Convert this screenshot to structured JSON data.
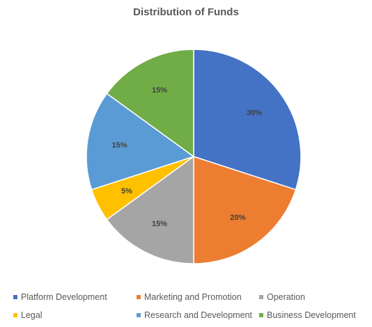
{
  "chart_data": {
    "type": "pie",
    "title": "Distribution of Funds",
    "slices": [
      {
        "label": "Platform Development",
        "value": 30,
        "display": "30%",
        "color": "#4472C4"
      },
      {
        "label": "Marketing and Promotion",
        "value": 20,
        "display": "20%",
        "color": "#ED7D31"
      },
      {
        "label": "Operation",
        "value": 15,
        "display": "15%",
        "color": "#A5A5A5"
      },
      {
        "label": "Legal",
        "value": 5,
        "display": "5%",
        "color": "#FFC000"
      },
      {
        "label": "Research and Development",
        "value": 15,
        "display": "15%",
        "color": "#5B9BD5"
      },
      {
        "label": "Business Development",
        "value": 15,
        "display": "15%",
        "color": "#70AD47"
      }
    ],
    "legend_position": "bottom",
    "legend_rows": [
      [
        "Platform Development",
        "Marketing and Promotion",
        "Operation"
      ],
      [
        "Legal",
        "Research and Development",
        "Business Development"
      ]
    ]
  }
}
